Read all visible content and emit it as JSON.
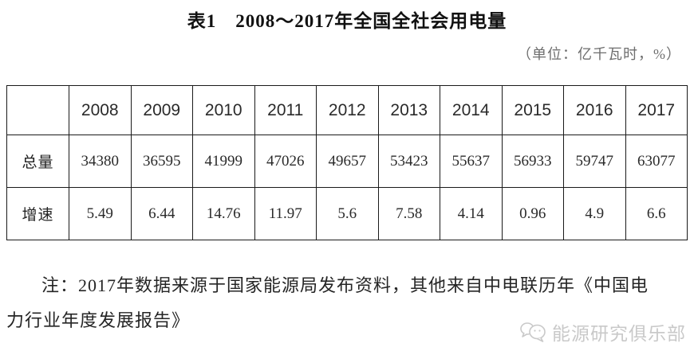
{
  "title": "表1　2008～2017年全国全社会用电量",
  "unit_note": "（单位：亿千瓦时，%）",
  "table": {
    "corner_label": "",
    "years": [
      "2008",
      "2009",
      "2010",
      "2011",
      "2012",
      "2013",
      "2014",
      "2015",
      "2016",
      "2017"
    ],
    "rows": [
      {
        "label": "总量",
        "values": [
          "34380",
          "36595",
          "41999",
          "47026",
          "49657",
          "53423",
          "55637",
          "56933",
          "59747",
          "63077"
        ]
      },
      {
        "label": "增速",
        "values": [
          "5.49",
          "6.44",
          "14.76",
          "11.97",
          "5.6",
          "7.58",
          "4.14",
          "0.96",
          "4.9",
          "6.6"
        ]
      }
    ]
  },
  "chart_data": {
    "type": "table",
    "title": "表1 2008～2017年全国全社会用电量",
    "unit": "亿千瓦时，%",
    "categories": [
      "2008",
      "2009",
      "2010",
      "2011",
      "2012",
      "2013",
      "2014",
      "2015",
      "2016",
      "2017"
    ],
    "series": [
      {
        "name": "总量",
        "values": [
          34380,
          36595,
          41999,
          47026,
          49657,
          53423,
          55637,
          56933,
          59747,
          63077
        ]
      },
      {
        "name": "增速",
        "values": [
          5.49,
          6.44,
          14.76,
          11.97,
          5.6,
          7.58,
          4.14,
          0.96,
          4.9,
          6.6
        ]
      }
    ]
  },
  "footnote": "注：2017年数据来源于国家能源局发布资料，其他来自中电联历年《中国电力行业年度发展报告》",
  "watermark": {
    "logo_icon": "chat-bubbles-icon",
    "text": "能源研究俱乐部",
    "color": "#c9c9c9"
  },
  "colors": {
    "border": "#1a1a1a",
    "title_text": "#111111",
    "unit_text": "#6e6e6e",
    "body_text": "#252525",
    "watermark_text": "#c9c9c9",
    "background": "#ffffff"
  }
}
